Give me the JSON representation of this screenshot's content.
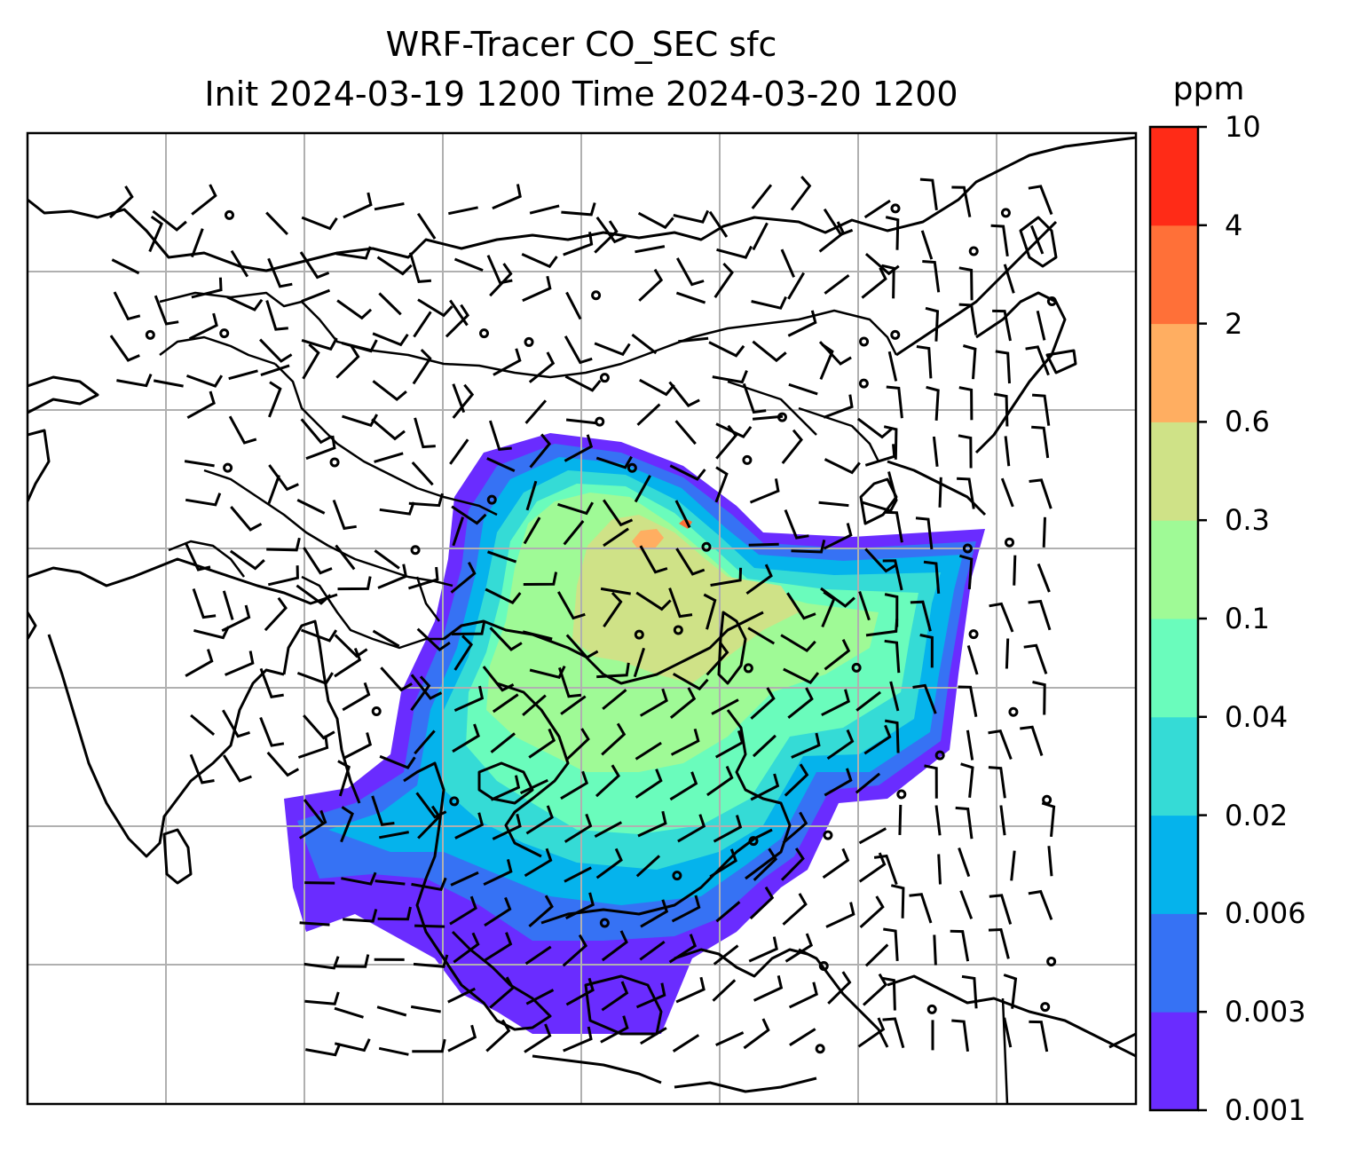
{
  "title": {
    "line1": "WRF-Tracer CO_SEC sfc",
    "line2": "Init 2024-03-19 1200 Time 2024-03-20 1200"
  },
  "colorbar": {
    "unit": "ppm",
    "ticks": [
      "0.001",
      "0.003",
      "0.006",
      "0.02",
      "0.04",
      "0.1",
      "0.3",
      "0.6",
      "2",
      "4",
      "10"
    ],
    "colors": [
      "#6a2cff",
      "#3672f4",
      "#05b3ec",
      "#35dbd6",
      "#6afcbc",
      "#9ffa96",
      "#cfe287",
      "#ffae61",
      "#ff7038",
      "#ff2b17"
    ]
  },
  "map": {
    "gridlines": true,
    "features": [
      "coastlines",
      "country-borders",
      "wind-barbs",
      "co-tracer-field"
    ]
  }
}
